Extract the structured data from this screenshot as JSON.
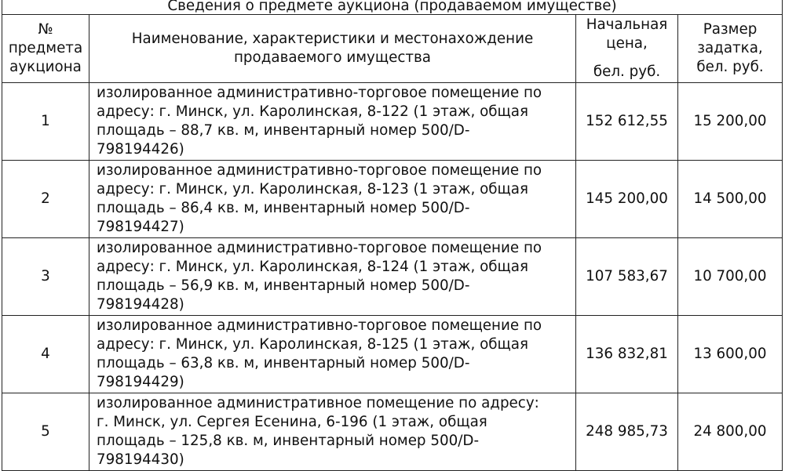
{
  "title": "Сведения о предмете аукциона (продаваемом имуществе)",
  "headers": {
    "number": [
      "№",
      "предмета",
      "аукциона"
    ],
    "description": [
      "Наименование, характеристики и местонахождение",
      "продаваемого имущества"
    ],
    "price": [
      "Начальная",
      "цена,",
      "бел. руб."
    ],
    "deposit": [
      "Размер",
      "задатка,",
      "бел. руб."
    ]
  },
  "rows": [
    {
      "number": "1",
      "lines": [
        "изолированное административно-торговое помещение по",
        "адресу: г. Минск, ул. Каролинская, 8-122 (1 этаж, общая",
        "площадь – 88,7 кв. м, инвентарный номер 500/D-",
        "798194426)"
      ],
      "price": "152 612,55",
      "deposit": "15 200,00"
    },
    {
      "number": "2",
      "lines": [
        "изолированное административно-торговое помещение по",
        "адресу: г. Минск, ул. Каролинская, 8-123 (1 этаж, общая",
        "площадь – 86,4 кв. м, инвентарный номер 500/D-",
        "798194427)"
      ],
      "price": "145 200,00",
      "deposit": "14 500,00"
    },
    {
      "number": "3",
      "lines": [
        "изолированное административно-торговое помещение по",
        "адресу: г. Минск, ул. Каролинская, 8-124 (1 этаж, общая",
        "площадь – 56,9 кв. м, инвентарный номер 500/D-",
        "798194428)"
      ],
      "price": "107 583,67",
      "deposit": "10 700,00"
    },
    {
      "number": "4",
      "lines": [
        "изолированное административно-торговое помещение по",
        "адресу: г. Минск, ул. Каролинская, 8-125 (1 этаж, общая",
        "площадь – 63,8 кв. м, инвентарный номер 500/D-",
        "798194429)"
      ],
      "price": "136 832,81",
      "deposit": "13 600,00"
    },
    {
      "number": "5",
      "lines": [
        "изолированное административное помещение по адресу:",
        "г. Минск, ул. Сергея Есенина, 6-196 (1 этаж, общая",
        "площадь – 125,8 кв. м, инвентарный номер 500/D-",
        "798194430)"
      ],
      "price": "248 985,73",
      "deposit": "24 800,00"
    }
  ]
}
